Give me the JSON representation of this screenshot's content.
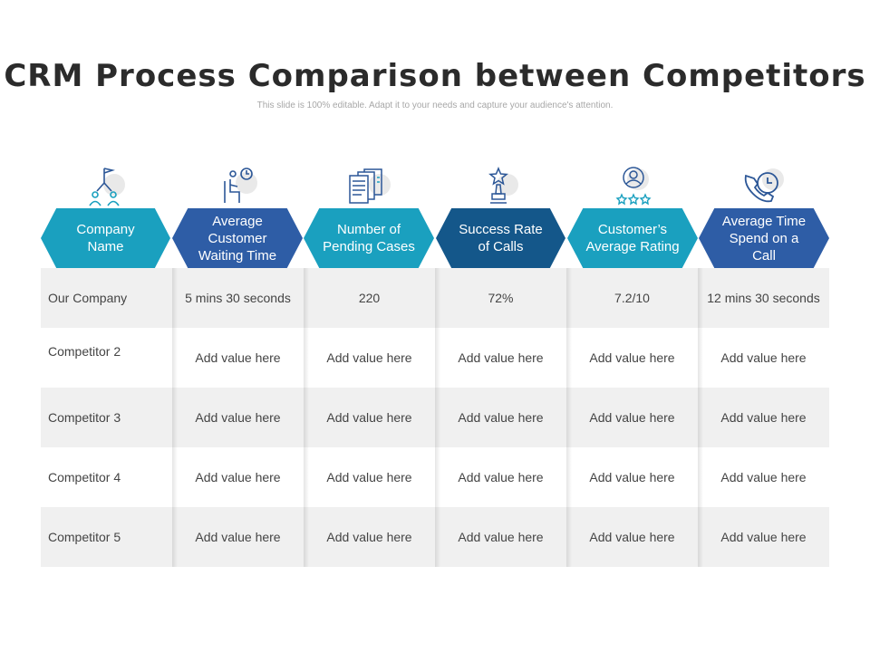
{
  "title": "CRM Process Comparison between Competitors",
  "subtitle": "This slide is 100% editable. Adapt it to your needs and capture your audience's attention.",
  "colors": {
    "teal": "#1aa0bf",
    "blue": "#2e5da6",
    "dark_blue": "#14578a",
    "icon_blue": "#2c5797",
    "icon_teal": "#1aa0bf",
    "row_shade": "#f0f0f0"
  },
  "columns": [
    {
      "label": "Company Name",
      "icon": "org-chart-icon",
      "color": "#1aa0bf"
    },
    {
      "label": "Average Customer Waiting Time",
      "icon": "waiting-person-clock-icon",
      "color": "#2e5da6"
    },
    {
      "label": "Number of Pending Cases",
      "icon": "documents-icon",
      "color": "#1aa0bf"
    },
    {
      "label": "Success Rate of Calls",
      "icon": "trophy-star-icon",
      "color": "#14578a"
    },
    {
      "label": "Customer’s Average Rating",
      "icon": "user-rating-stars-icon",
      "color": "#1aa0bf"
    },
    {
      "label": "Average Time Spend on a Call",
      "icon": "phone-clock-icon",
      "color": "#2e5da6"
    }
  ],
  "rows": [
    {
      "cells": [
        "Our Company",
        "5 mins 30 seconds",
        "220",
        "72%",
        "7.2/10",
        "12 mins 30 seconds"
      ]
    },
    {
      "cells": [
        "Competitor 2",
        "Add value here",
        "Add value here",
        "Add value here",
        "Add value here",
        "Add value here"
      ]
    },
    {
      "cells": [
        "Competitor 3",
        "Add value here",
        "Add value here",
        "Add value here",
        "Add value here",
        "Add value here"
      ]
    },
    {
      "cells": [
        "Competitor 4",
        "Add value here",
        "Add value here",
        "Add value here",
        "Add value here",
        "Add value here"
      ]
    },
    {
      "cells": [
        "Competitor 5",
        "Add value here",
        "Add value here",
        "Add value here",
        "Add value here",
        "Add value here"
      ]
    }
  ]
}
